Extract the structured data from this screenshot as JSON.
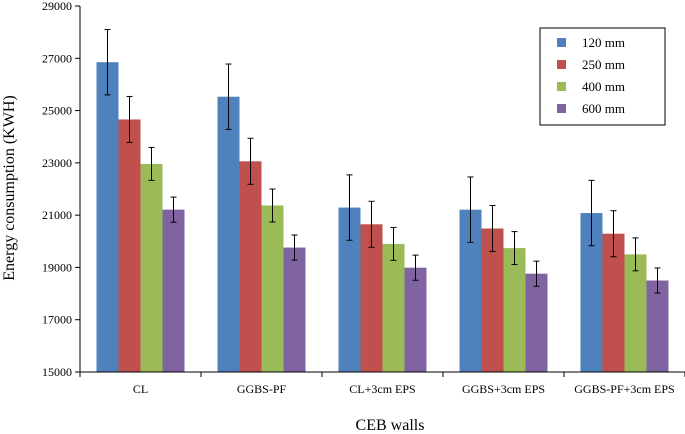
{
  "chart_data": {
    "type": "bar",
    "title": "",
    "xlabel": "CEB walls",
    "ylabel": "Energy consumption (KWH)",
    "ylim": [
      15000,
      29000
    ],
    "yticks": [
      15000,
      17000,
      19000,
      21000,
      23000,
      25000,
      27000,
      29000
    ],
    "ytick_labels": [
      "15000",
      "17000",
      "19000",
      "21000",
      "23000",
      "25000",
      "27000",
      "29000"
    ],
    "grid": false,
    "legend_position": "top-right",
    "categories": [
      "CL",
      "GGBS-PF",
      "CL+3cm EPS",
      "GGBS+3cm EPS",
      "GGBS-PF+3cm EPS"
    ],
    "series": [
      {
        "name": "120 mm",
        "color": "#4f81bd",
        "values": [
          26850,
          25530,
          21290,
          21210,
          21080
        ],
        "errors": [
          1250,
          1250,
          1250,
          1250,
          1250
        ]
      },
      {
        "name": "250 mm",
        "color": "#c0504d",
        "values": [
          24660,
          23060,
          20650,
          20490,
          20290
        ],
        "errors": [
          880,
          880,
          880,
          880,
          880
        ]
      },
      {
        "name": "400 mm",
        "color": "#9bbb59",
        "values": [
          22960,
          21370,
          19900,
          19740,
          19500
        ],
        "errors": [
          630,
          630,
          630,
          630,
          630
        ]
      },
      {
        "name": "600 mm",
        "color": "#8064a2",
        "values": [
          21210,
          19760,
          18990,
          18760,
          18500
        ],
        "errors": [
          480,
          480,
          480,
          480,
          480
        ]
      }
    ]
  }
}
